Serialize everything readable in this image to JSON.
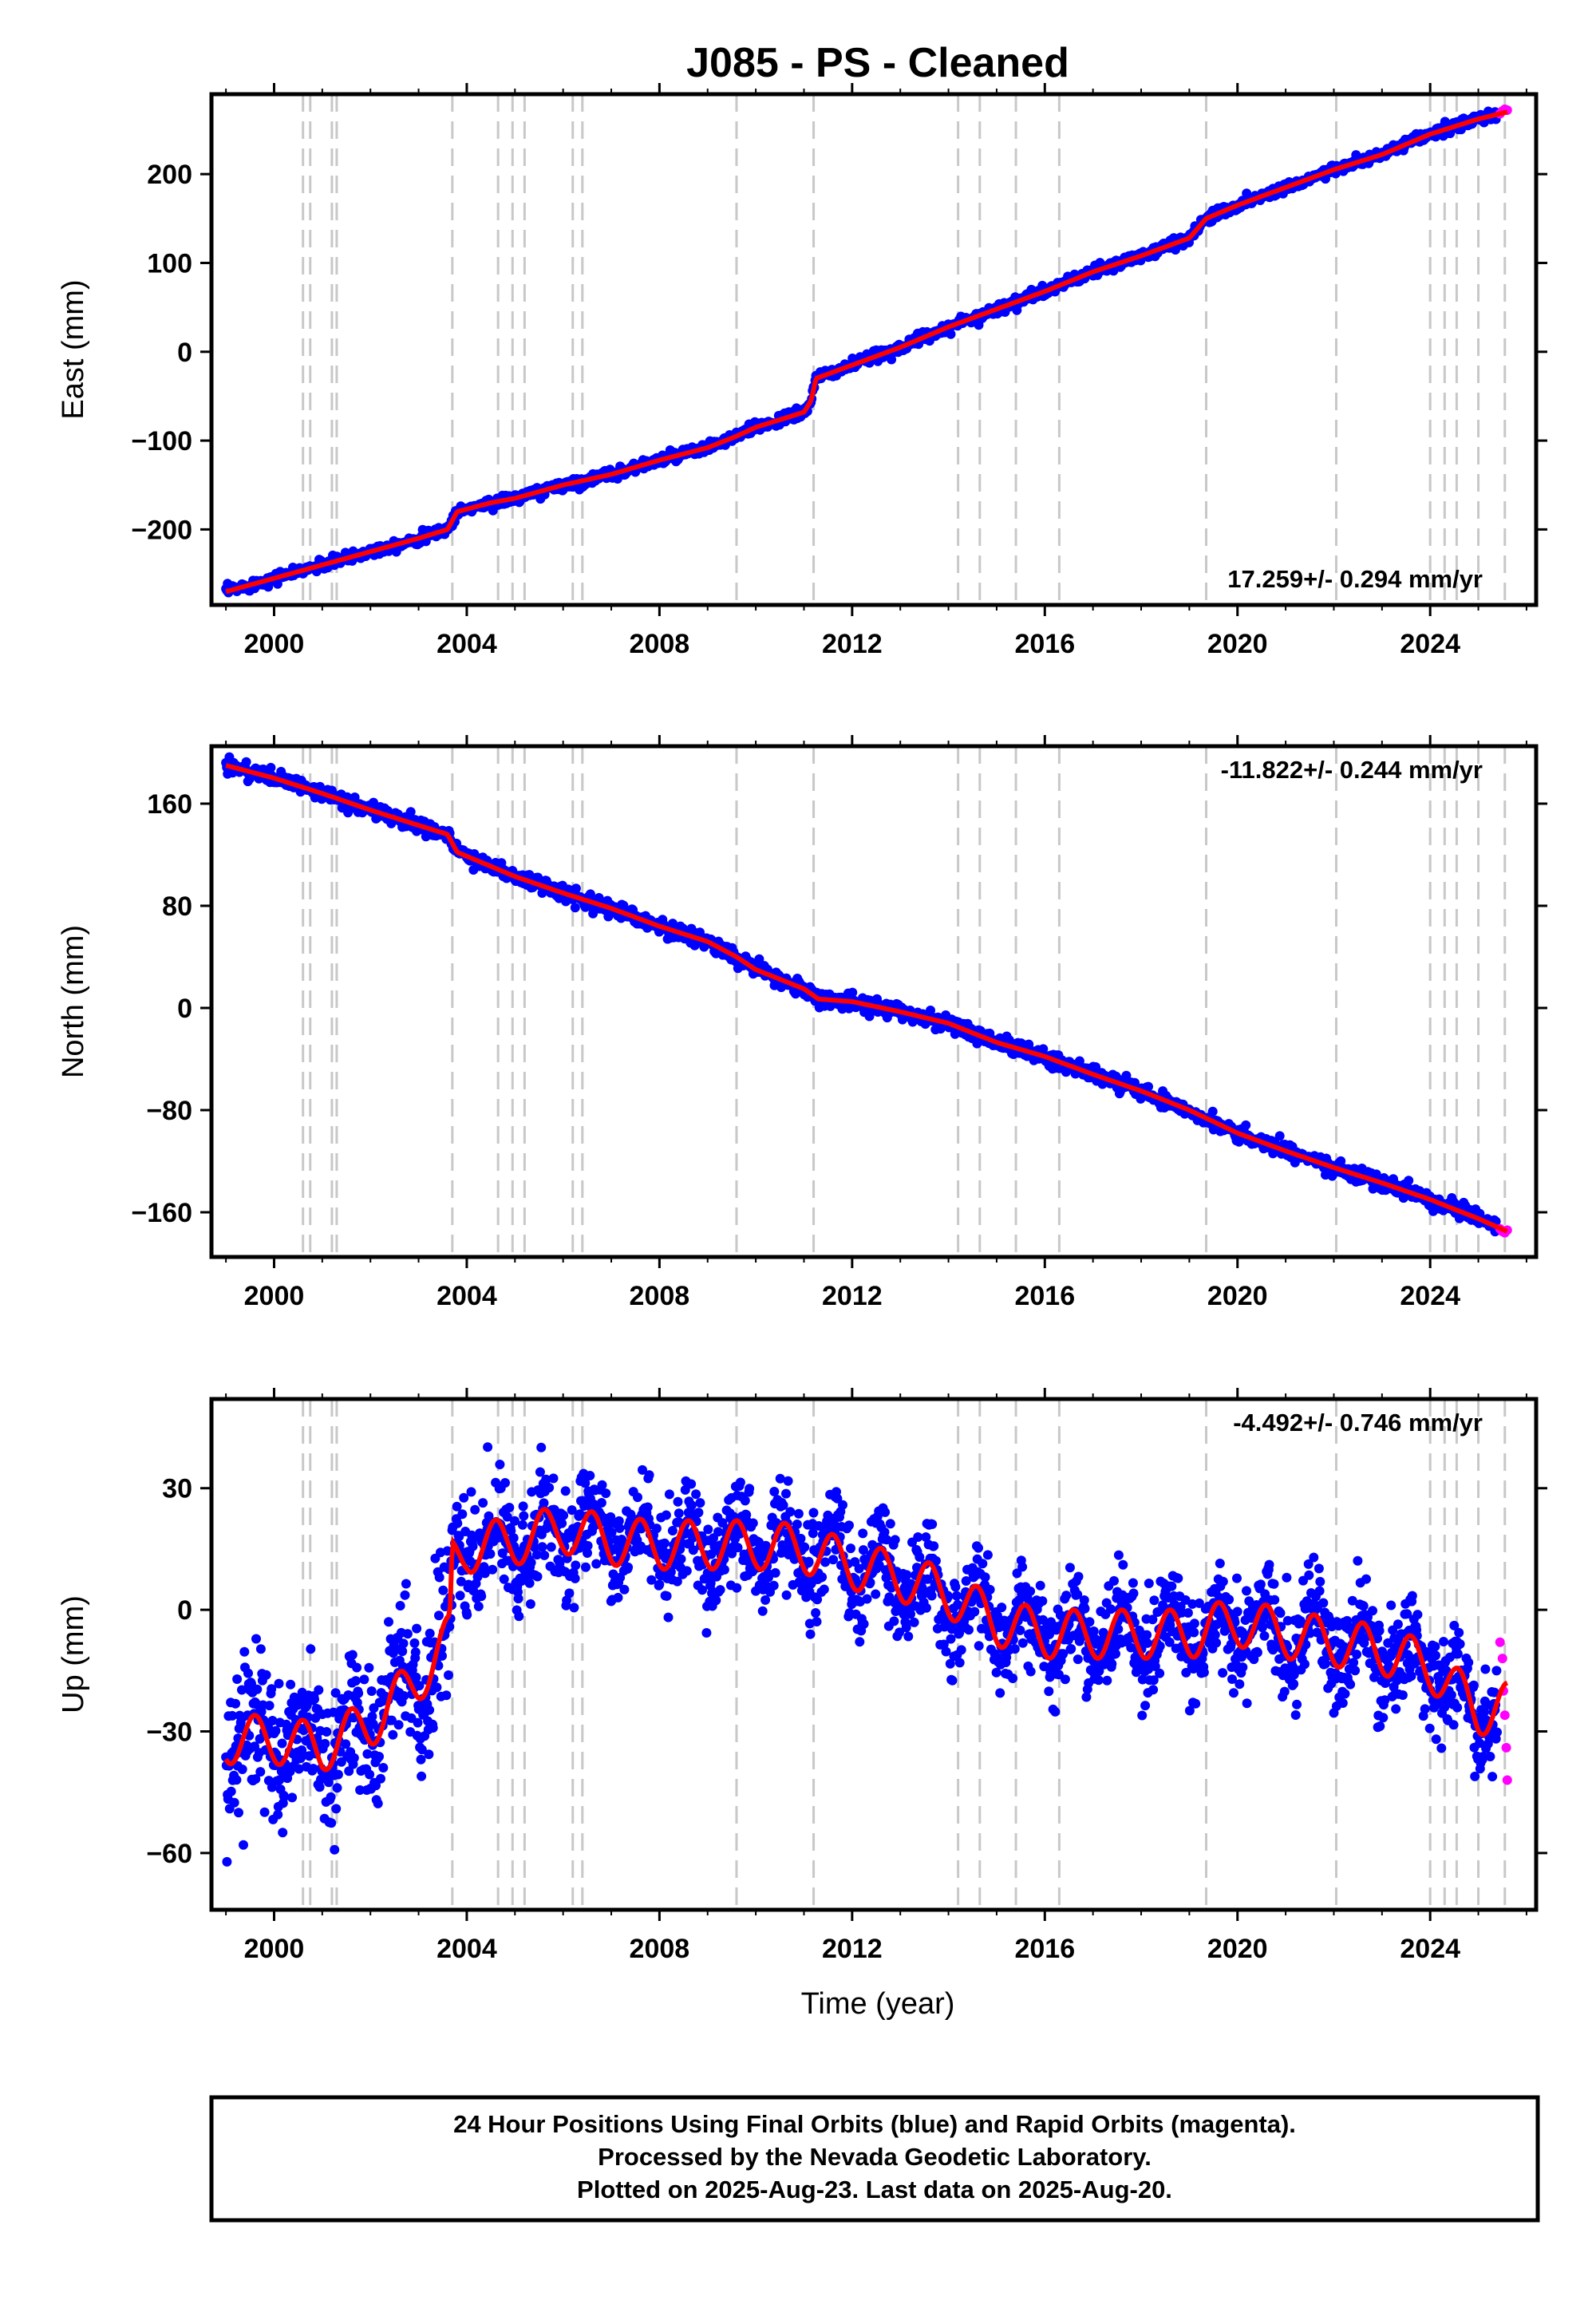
{
  "title": "J085  - PS - Cleaned",
  "xlabel": "Time (year)",
  "footer": [
    "24 Hour Positions Using Final Orbits (blue) and Rapid Orbits (magenta).",
    "Processed by the Nevada Geodetic Laboratory.",
    "Plotted on 2025-Aug-23. Last data on 2025-Aug-20."
  ],
  "colors": {
    "final": "#0000ff",
    "rapid": "#ff00ff",
    "model": "#ff0000",
    "event": "#c8c8c8"
  },
  "chart_data": [
    {
      "type": "scatter",
      "panel": "East",
      "ylabel": "East (mm)",
      "rate": "17.259+/- 0.294 mm/yr",
      "rate_placement": "bottom-right",
      "xlim": [
        1998.7,
        2026.2
      ],
      "ylim": [
        -285,
        290
      ],
      "xticks": [
        2000,
        2004,
        2008,
        2012,
        2016,
        2020,
        2024
      ],
      "yticks": [
        -200,
        -100,
        0,
        100,
        200
      ],
      "ytick_labels": [
        "−200",
        "−100",
        "0",
        "100",
        "200"
      ],
      "event_lines": [
        2000.6,
        2000.75,
        2001.2,
        2001.3,
        2003.7,
        2004.65,
        2004.95,
        2005.2,
        2006.2,
        2006.4,
        2009.6,
        2011.2,
        2014.2,
        2014.65,
        2015.4,
        2016.3,
        2019.35,
        2022.05,
        2024.0,
        2024.3,
        2024.55,
        2025.0,
        2025.55
      ],
      "trend": {
        "x": [
          1999.0,
          2000.0,
          2001.0,
          2002.0,
          2003.0,
          2003.6,
          2003.8,
          2004.5,
          2005.0,
          2006.0,
          2007.0,
          2008.0,
          2009.0,
          2009.6,
          2010.0,
          2011.0,
          2011.15,
          2011.25,
          2012.0,
          2013.0,
          2014.0,
          2015.0,
          2016.0,
          2017.0,
          2018.0,
          2019.0,
          2019.35,
          2020.0,
          2021.0,
          2022.0,
          2023.0,
          2024.0,
          2025.0,
          2025.6
        ],
        "y": [
          -270,
          -255,
          -240,
          -225,
          -210,
          -200,
          -180,
          -170,
          -165,
          -150,
          -138,
          -122,
          -108,
          -95,
          -85,
          -68,
          -55,
          -30,
          -15,
          5,
          28,
          48,
          68,
          90,
          108,
          128,
          150,
          165,
          185,
          205,
          222,
          245,
          262,
          270
        ]
      },
      "scatter_sigma": 3,
      "rapid_points": {
        "x": [
          2025.45,
          2025.5,
          2025.55,
          2025.6
        ],
        "y": [
          268,
          271,
          273,
          272
        ]
      }
    },
    {
      "type": "scatter",
      "panel": "North",
      "ylabel": "North (mm)",
      "rate": "-11.822+/- 0.244 mm/yr",
      "rate_placement": "top-right",
      "xlim": [
        1998.7,
        2026.2
      ],
      "ylim": [
        -195,
        205
      ],
      "xticks": [
        2000,
        2004,
        2008,
        2012,
        2016,
        2020,
        2024
      ],
      "yticks": [
        -160,
        -80,
        0,
        80,
        160
      ],
      "ytick_labels": [
        "−160",
        "−80",
        "0",
        "80",
        "160"
      ],
      "event_lines": [
        2000.6,
        2000.75,
        2001.2,
        2001.3,
        2003.7,
        2004.65,
        2004.95,
        2005.2,
        2006.2,
        2006.4,
        2009.6,
        2011.2,
        2014.2,
        2014.65,
        2015.4,
        2016.3,
        2019.35,
        2022.05,
        2024.0,
        2024.3,
        2024.55,
        2025.0,
        2025.55
      ],
      "trend": {
        "x": [
          1999.0,
          2000.0,
          2001.0,
          2002.0,
          2003.0,
          2003.6,
          2003.8,
          2005.0,
          2006.0,
          2007.0,
          2008.0,
          2009.0,
          2009.6,
          2010.0,
          2011.0,
          2011.3,
          2012.0,
          2013.0,
          2014.0,
          2015.0,
          2016.0,
          2017.0,
          2018.0,
          2019.0,
          2020.0,
          2021.0,
          2022.0,
          2023.0,
          2024.0,
          2025.0,
          2025.6
        ],
        "y": [
          190,
          180,
          168,
          155,
          143,
          136,
          122,
          103,
          90,
          78,
          64,
          52,
          40,
          30,
          15,
          7,
          5,
          -3,
          -12,
          -27,
          -38,
          -52,
          -65,
          -80,
          -98,
          -112,
          -125,
          -137,
          -150,
          -165,
          -175
        ]
      },
      "scatter_sigma": 3,
      "rapid_points": {
        "x": [
          2025.45,
          2025.5,
          2025.55,
          2025.6
        ],
        "y": [
          -173,
          -175,
          -176,
          -174
        ]
      }
    },
    {
      "type": "scatter",
      "panel": "Up",
      "ylabel": "Up (mm)",
      "rate": "-4.492+/- 0.746 mm/yr",
      "rate_placement": "top-right",
      "xlim": [
        1998.7,
        2026.2
      ],
      "ylim": [
        -74,
        52
      ],
      "xticks": [
        2000,
        2004,
        2008,
        2012,
        2016,
        2020,
        2024
      ],
      "yticks": [
        -60,
        -30,
        0,
        30
      ],
      "ytick_labels": [
        "−60",
        "−30",
        "0",
        "30"
      ],
      "event_lines": [
        2000.6,
        2000.75,
        2001.2,
        2001.3,
        2003.7,
        2004.65,
        2004.95,
        2005.2,
        2006.2,
        2006.4,
        2009.6,
        2011.2,
        2014.2,
        2014.65,
        2015.4,
        2016.3,
        2019.35,
        2022.05,
        2024.0,
        2024.3,
        2024.55,
        2025.0,
        2025.55
      ],
      "trend": {
        "x": [
          1999.0,
          2000.0,
          2001.0,
          2002.0,
          2003.0,
          2003.65,
          2003.7,
          2004.0,
          2005.0,
          2006.0,
          2007.0,
          2008.0,
          2009.0,
          2010.0,
          2011.0,
          2012.0,
          2013.0,
          2014.0,
          2015.0,
          2016.0,
          2017.0,
          2018.0,
          2019.0,
          2020.0,
          2021.0,
          2022.0,
          2023.0,
          2024.0,
          2025.0,
          2025.6
        ],
        "y": [
          -32,
          -32,
          -34,
          -28,
          -17,
          -7,
          12,
          15,
          17,
          20,
          17,
          16,
          16,
          16,
          15,
          11,
          8,
          4,
          -3,
          -6,
          -6,
          -6,
          -6,
          -3,
          -6,
          -8,
          -10,
          -14,
          -25,
          -24
        ]
      },
      "seasonal_amplitude": 6,
      "scatter_sigma": 6,
      "rapid_points": {
        "x": [
          2025.45,
          2025.5,
          2025.52,
          2025.55,
          2025.58,
          2025.6
        ],
        "y": [
          -8,
          -12,
          -20,
          -26,
          -34,
          -42
        ]
      }
    }
  ]
}
